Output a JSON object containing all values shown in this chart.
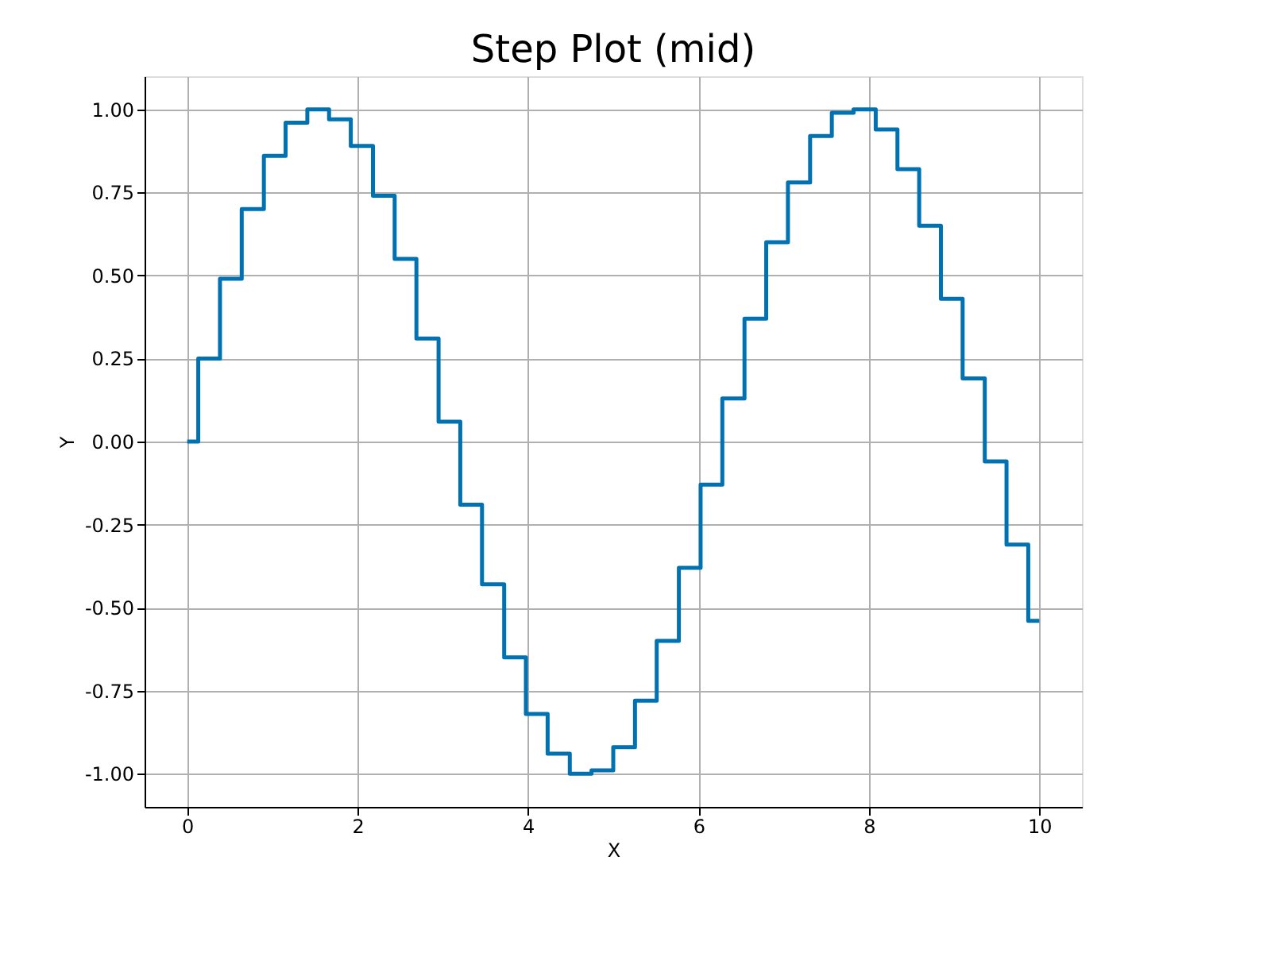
{
  "chart_data": {
    "type": "step",
    "title": "Step Plot (mid)",
    "xlabel": "X",
    "ylabel": "Y",
    "x": [
      0,
      0.26,
      0.51,
      0.77,
      1.03,
      1.28,
      1.54,
      1.79,
      2.05,
      2.31,
      2.56,
      2.82,
      3.08,
      3.33,
      3.59,
      3.85,
      4.1,
      4.36,
      4.62,
      4.87,
      5.13,
      5.38,
      5.64,
      5.9,
      6.15,
      6.41,
      6.67,
      6.92,
      7.18,
      7.44,
      7.69,
      7.95,
      8.21,
      8.46,
      8.72,
      8.97,
      9.23,
      9.49,
      9.74,
      10
    ],
    "series": [
      {
        "color": "#0072b2",
        "values": [
          0,
          0.25,
          0.49,
          0.7,
          0.86,
          0.96,
          1.0,
          0.97,
          0.89,
          0.74,
          0.55,
          0.31,
          0.06,
          -0.19,
          -0.43,
          -0.65,
          -0.82,
          -0.94,
          -1.0,
          -0.99,
          -0.92,
          -0.78,
          -0.6,
          -0.38,
          -0.13,
          0.13,
          0.37,
          0.6,
          0.78,
          0.92,
          0.99,
          1.0,
          0.94,
          0.82,
          0.65,
          0.43,
          0.19,
          -0.06,
          -0.31,
          -0.54
        ]
      }
    ],
    "xlim": [
      -0.5,
      10.5
    ],
    "ylim": [
      -1.1,
      1.1
    ],
    "xticks": [
      0,
      2,
      4,
      6,
      8,
      10
    ],
    "yticks": [
      {
        "value": -1,
        "label": "-1.00"
      },
      {
        "value": -0.75,
        "label": "-0.75"
      },
      {
        "value": -0.5,
        "label": "-0.50"
      },
      {
        "value": -0.25,
        "label": "-0.25"
      },
      {
        "value": 0,
        "label": "0.00"
      },
      {
        "value": 0.25,
        "label": "0.25"
      },
      {
        "value": 0.5,
        "label": "0.50"
      },
      {
        "value": 0.75,
        "label": "0.75"
      },
      {
        "value": 1,
        "label": "1.00"
      }
    ],
    "grid": true,
    "marker": "none",
    "line_style": "solid"
  }
}
